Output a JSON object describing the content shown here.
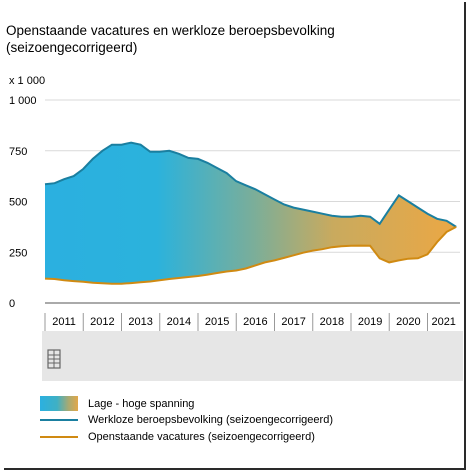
{
  "title_line1": "Openstaande vacatures en werkloze beroepsbevolking",
  "title_line2": "(seizoengecorrigeerd)",
  "unit": "x 1 000",
  "colors": {
    "unemployed": "#1a7fa0",
    "vacancies": "#d08a12",
    "gradient_start": "#2bb0e0",
    "gradient_end": "#e8a847",
    "axis": "#555555",
    "grid": "#d9d9d9",
    "scrollbar": "#e6e6e6"
  },
  "chart_data": {
    "type": "area",
    "xlim": [
      2011.0,
      2021.85
    ],
    "ylim": [
      0,
      1000
    ],
    "yticks": [
      0,
      250,
      500,
      750,
      1000
    ],
    "ytick_labels": [
      "0",
      "250",
      "500",
      "750",
      "1 000"
    ],
    "xtick_labels": [
      "2011",
      "2012",
      "2013",
      "2014",
      "2015",
      "2016",
      "2017",
      "2018",
      "2019",
      "2020",
      "2021"
    ],
    "grid": "horizontal",
    "legend_position": "bottom",
    "band_label": "Lage - hoge spanning",
    "series": [
      {
        "name": "Werkloze beroepsbevolking (seizoengecorrigeerd)",
        "x": [
          2011.0,
          2011.25,
          2011.5,
          2011.75,
          2012.0,
          2012.25,
          2012.5,
          2012.75,
          2013.0,
          2013.25,
          2013.5,
          2013.75,
          2014.0,
          2014.25,
          2014.5,
          2014.75,
          2015.0,
          2015.25,
          2015.5,
          2015.75,
          2016.0,
          2016.25,
          2016.5,
          2016.75,
          2017.0,
          2017.25,
          2017.5,
          2017.75,
          2018.0,
          2018.25,
          2018.5,
          2018.75,
          2019.0,
          2019.25,
          2019.5,
          2019.75,
          2020.0,
          2020.25,
          2020.5,
          2020.75,
          2021.0,
          2021.25,
          2021.5,
          2021.75
        ],
        "values": [
          585,
          590,
          610,
          625,
          660,
          710,
          750,
          780,
          780,
          790,
          780,
          745,
          745,
          750,
          735,
          715,
          710,
          690,
          665,
          640,
          600,
          580,
          560,
          535,
          510,
          485,
          470,
          460,
          450,
          440,
          430,
          425,
          425,
          430,
          425,
          390,
          460,
          530,
          500,
          470,
          440,
          415,
          405,
          375
        ]
      },
      {
        "name": "Openstaande vacatures (seizoengecorrigeerd)",
        "x": [
          2011.0,
          2011.25,
          2011.5,
          2011.75,
          2012.0,
          2012.25,
          2012.5,
          2012.75,
          2013.0,
          2013.25,
          2013.5,
          2013.75,
          2014.0,
          2014.25,
          2014.5,
          2014.75,
          2015.0,
          2015.25,
          2015.5,
          2015.75,
          2016.0,
          2016.25,
          2016.5,
          2016.75,
          2017.0,
          2017.25,
          2017.5,
          2017.75,
          2018.0,
          2018.25,
          2018.5,
          2018.75,
          2019.0,
          2019.25,
          2019.5,
          2019.75,
          2020.0,
          2020.25,
          2020.5,
          2020.75,
          2021.0,
          2021.25,
          2021.5,
          2021.75
        ],
        "values": [
          120,
          118,
          112,
          108,
          105,
          100,
          97,
          95,
          95,
          98,
          102,
          106,
          112,
          118,
          123,
          128,
          133,
          140,
          148,
          155,
          160,
          170,
          185,
          200,
          210,
          222,
          235,
          248,
          258,
          265,
          275,
          280,
          282,
          283,
          282,
          220,
          200,
          210,
          218,
          220,
          240,
          300,
          350,
          375
        ]
      }
    ]
  }
}
